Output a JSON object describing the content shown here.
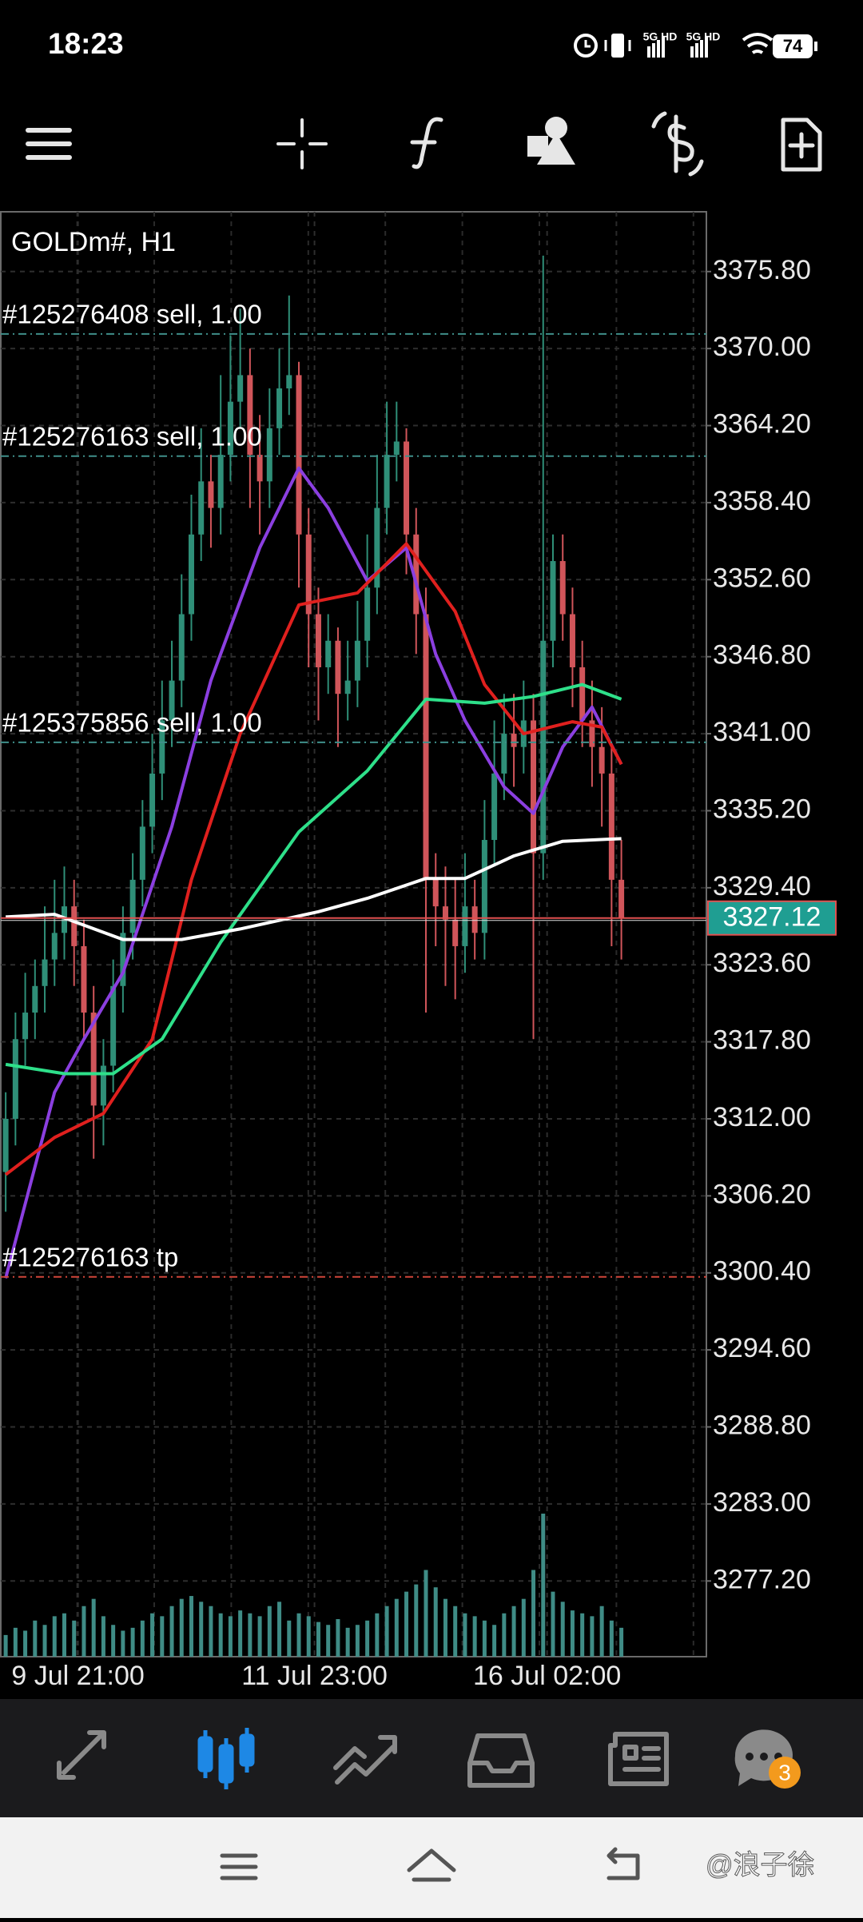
{
  "status_bar": {
    "time": "18:23",
    "network_1": "5G HD",
    "network_2": "5G HD",
    "battery": "74"
  },
  "chart_data": {
    "type": "candlestick",
    "title": "GOLDm#, H1",
    "open": [
      3308,
      3312,
      3318,
      3320,
      3322,
      3324,
      3326,
      3328,
      3325,
      3320,
      3313,
      3316,
      3322,
      3326,
      3330,
      3334,
      3338,
      3342,
      3345,
      3350,
      3356,
      3360,
      3358,
      3362,
      3366,
      3368,
      3362,
      3360,
      3364,
      3367,
      3368,
      3356,
      3350,
      3346,
      3348,
      3344,
      3345,
      3348,
      3352,
      3358,
      3362,
      3363,
      3356,
      3350,
      3330,
      3328,
      3327,
      3325,
      3328,
      3326,
      3333,
      3338,
      3341,
      3340,
      3342,
      3332,
      3348,
      3354,
      3350,
      3346,
      3342,
      3340,
      3338,
      3330
    ],
    "high": [
      3314,
      3320,
      3323,
      3324,
      3328,
      3330,
      3331,
      3330,
      3327,
      3322,
      3318,
      3324,
      3328,
      3332,
      3336,
      3341,
      3345,
      3348,
      3353,
      3359,
      3364,
      3362,
      3368,
      3371,
      3373,
      3370,
      3365,
      3367,
      3370,
      3374,
      3369,
      3358,
      3352,
      3350,
      3349,
      3348,
      3351,
      3356,
      3362,
      3366,
      3366,
      3364,
      3358,
      3352,
      3332,
      3331,
      3330,
      3332,
      3330,
      3336,
      3342,
      3344,
      3344,
      3345,
      3344,
      3377,
      3356,
      3356,
      3352,
      3348,
      3345,
      3343,
      3340,
      3333
    ],
    "low": [
      3305,
      3310,
      3316,
      3318,
      3320,
      3322,
      3324,
      3322,
      3318,
      3309,
      3310,
      3314,
      3320,
      3324,
      3328,
      3332,
      3336,
      3340,
      3343,
      3348,
      3354,
      3355,
      3356,
      3360,
      3364,
      3358,
      3356,
      3358,
      3362,
      3365,
      3352,
      3346,
      3342,
      3344,
      3340,
      3342,
      3343,
      3346,
      3350,
      3356,
      3360,
      3353,
      3347,
      3320,
      3325,
      3322,
      3321,
      3323,
      3324,
      3324,
      3331,
      3336,
      3337,
      3338,
      3318,
      3330,
      3346,
      3348,
      3343,
      3340,
      3337,
      3334,
      3325,
      3324
    ],
    "close": [
      3312,
      3318,
      3320,
      3322,
      3324,
      3326,
      3328,
      3325,
      3320,
      3313,
      3316,
      3322,
      3326,
      3330,
      3334,
      3338,
      3342,
      3345,
      3350,
      3356,
      3360,
      3358,
      3362,
      3366,
      3368,
      3362,
      3360,
      3364,
      3367,
      3368,
      3356,
      3350,
      3346,
      3348,
      3344,
      3345,
      3348,
      3352,
      3358,
      3362,
      3363,
      3356,
      3350,
      3330,
      3328,
      3327,
      3325,
      3328,
      3326,
      3333,
      3338,
      3341,
      3340,
      3342,
      3332,
      3348,
      3354,
      3350,
      3346,
      3342,
      3340,
      3338,
      3330,
      3327.12
    ],
    "up_color": "#2f8f78",
    "down_color": "#d0555a",
    "volumes": [
      15,
      20,
      18,
      25,
      22,
      28,
      30,
      25,
      35,
      40,
      28,
      22,
      18,
      20,
      25,
      30,
      28,
      35,
      40,
      42,
      38,
      35,
      30,
      28,
      32,
      30,
      28,
      35,
      38,
      25,
      30,
      28,
      24,
      22,
      26,
      20,
      22,
      25,
      30,
      35,
      40,
      45,
      50,
      60,
      48,
      40,
      35,
      30,
      28,
      25,
      22,
      30,
      35,
      40,
      60,
      99,
      45,
      38,
      32,
      30,
      28,
      35,
      25,
      20
    ],
    "volume_lim": [
      0,
      1000
    ],
    "volume_color": "#3f8c86",
    "moving_averages": [
      {
        "color": "#8b3fe0",
        "x": [
          0,
          5,
          8,
          12,
          17,
          21,
          26,
          30,
          33,
          37,
          41,
          44,
          47,
          51,
          54,
          57,
          60,
          63
        ],
        "values": [
          3300,
          3314,
          3318,
          3323,
          3334,
          3345,
          3355,
          3361,
          3358,
          3352.5,
          3355,
          3347,
          3342,
          3337,
          3335,
          3340,
          3343,
          3338.7
        ]
      },
      {
        "color": "#e0201e",
        "x": [
          0,
          5,
          10,
          15,
          19,
          24,
          30,
          36,
          41,
          46,
          49,
          53,
          58,
          61,
          63
        ],
        "values": [
          3307.8,
          3310.6,
          3312.4,
          3318,
          3330,
          3341,
          3350.7,
          3351.6,
          3355.3,
          3350.2,
          3344.7,
          3341,
          3341.9,
          3341.5,
          3338.7
        ]
      },
      {
        "color": "#2ee08a",
        "x": [
          0,
          6,
          11,
          16,
          22,
          30,
          37,
          43,
          49,
          54,
          59,
          63
        ],
        "values": [
          3316.1,
          3315.4,
          3315.4,
          3318,
          3325.3,
          3333.6,
          3338.2,
          3343.6,
          3343.3,
          3343.8,
          3344.7,
          3343.6
        ]
      },
      {
        "color": "#ffffff",
        "x": [
          0,
          5,
          12,
          18,
          24,
          32,
          37,
          43,
          47,
          52,
          57,
          63
        ],
        "values": [
          3327.2,
          3327.4,
          3325.5,
          3325.5,
          3326.3,
          3327.6,
          3328.6,
          3330.1,
          3330.1,
          3331.8,
          3332.9,
          3333.1
        ]
      }
    ],
    "xlim": [
      -0.5,
      71.7
    ],
    "xticks": [
      {
        "value": 7.4,
        "label": "9 Jul 21:00"
      },
      {
        "value": 31.6,
        "label": "11 Jul 23:00"
      },
      {
        "value": 55.4,
        "label": "16 Jul 02:00"
      }
    ],
    "ylim": [
      3271.5,
      3380.3
    ],
    "yticks": [
      {
        "value": 3375.8,
        "label": "3375.80"
      },
      {
        "value": 3370,
        "label": "3370.00"
      },
      {
        "value": 3364.2,
        "label": "3364.20"
      },
      {
        "value": 3358.4,
        "label": "3358.40"
      },
      {
        "value": 3352.6,
        "label": "3352.60"
      },
      {
        "value": 3346.8,
        "label": "3346.80"
      },
      {
        "value": 3341,
        "label": "3341.00"
      },
      {
        "value": 3335.2,
        "label": "3335.20"
      },
      {
        "value": 3329.4,
        "label": "3329.40"
      },
      {
        "value": 3323.6,
        "label": "3323.60"
      },
      {
        "value": 3317.8,
        "label": "3317.80"
      },
      {
        "value": 3312,
        "label": "3312.00"
      },
      {
        "value": 3306.2,
        "label": "3306.20"
      },
      {
        "value": 3300.4,
        "label": "3300.40"
      },
      {
        "value": 3294.6,
        "label": "3294.60"
      },
      {
        "value": 3288.8,
        "label": "3288.80"
      },
      {
        "value": 3283,
        "label": "3283.00"
      },
      {
        "value": 3277.2,
        "label": "3277.20"
      }
    ],
    "grid": true,
    "current_price": 3327.12,
    "current_price_color": "#e05050",
    "current_price_box": "#1f9e92",
    "order_lines": [
      {
        "label": "#125276408 sell, 1.00",
        "value": 3371.1,
        "color": "#3f8f8a"
      },
      {
        "label": "#125276163 sell, 1.00",
        "value": 3361.9,
        "color": "#3f8f8a"
      },
      {
        "label": "#125375856 sell, 1.00",
        "value": 3340.35,
        "color": "#3f8f8a"
      },
      {
        "label": "#125276163 tp",
        "value": 3300.1,
        "color": "#d0453a"
      }
    ]
  },
  "bottom_nav": {
    "badge": "3"
  },
  "watermark": "@浪子徐"
}
